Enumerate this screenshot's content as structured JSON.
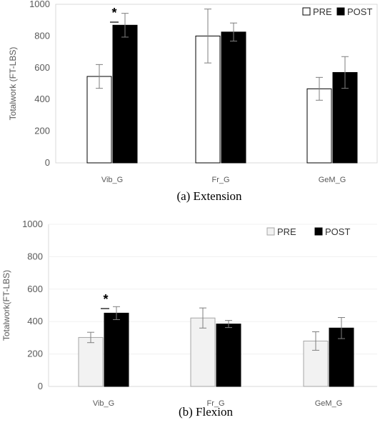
{
  "chart_data": [
    {
      "type": "bar",
      "caption": "(a) Extension",
      "ylabel": "Totalwork (FT-LBS)",
      "ylim": [
        0,
        1000
      ],
      "yticks": [
        "0",
        "200",
        "400",
        "600",
        "800",
        "1000"
      ],
      "categories": [
        "Vib_G",
        "Fr_G",
        "GeM_G"
      ],
      "series": [
        {
          "name": "PRE",
          "values": [
            545,
            800,
            467
          ],
          "errors": [
            75,
            170,
            72
          ],
          "fill": "#ffffff",
          "stroke": "#000000"
        },
        {
          "name": "POST",
          "values": [
            868,
            825,
            570
          ],
          "errors": [
            75,
            57,
            100
          ],
          "fill": "#000000",
          "stroke": "#000000"
        }
      ],
      "legend": "top-right",
      "annotation": "*",
      "annotation_category": 0
    },
    {
      "type": "bar",
      "caption": "(b) Flexion",
      "ylabel": "Totalwork(FT-LBS)",
      "ylim": [
        0,
        1000
      ],
      "yticks": [
        "0",
        "200",
        "400",
        "600",
        "800",
        "1000"
      ],
      "categories": [
        "Vib_G",
        "Fr_G",
        "GeM_G"
      ],
      "series": [
        {
          "name": "PRE",
          "values": [
            302,
            422,
            280
          ],
          "errors": [
            32,
            62,
            57
          ],
          "fill": "#f2f2f2",
          "stroke": "#a6a6a6"
        },
        {
          "name": "POST",
          "values": [
            452,
            385,
            360
          ],
          "errors": [
            40,
            22,
            65
          ],
          "fill": "#000000",
          "stroke": "#000000"
        }
      ],
      "legend": "top-right",
      "annotation": "*",
      "annotation_category": 0
    }
  ]
}
